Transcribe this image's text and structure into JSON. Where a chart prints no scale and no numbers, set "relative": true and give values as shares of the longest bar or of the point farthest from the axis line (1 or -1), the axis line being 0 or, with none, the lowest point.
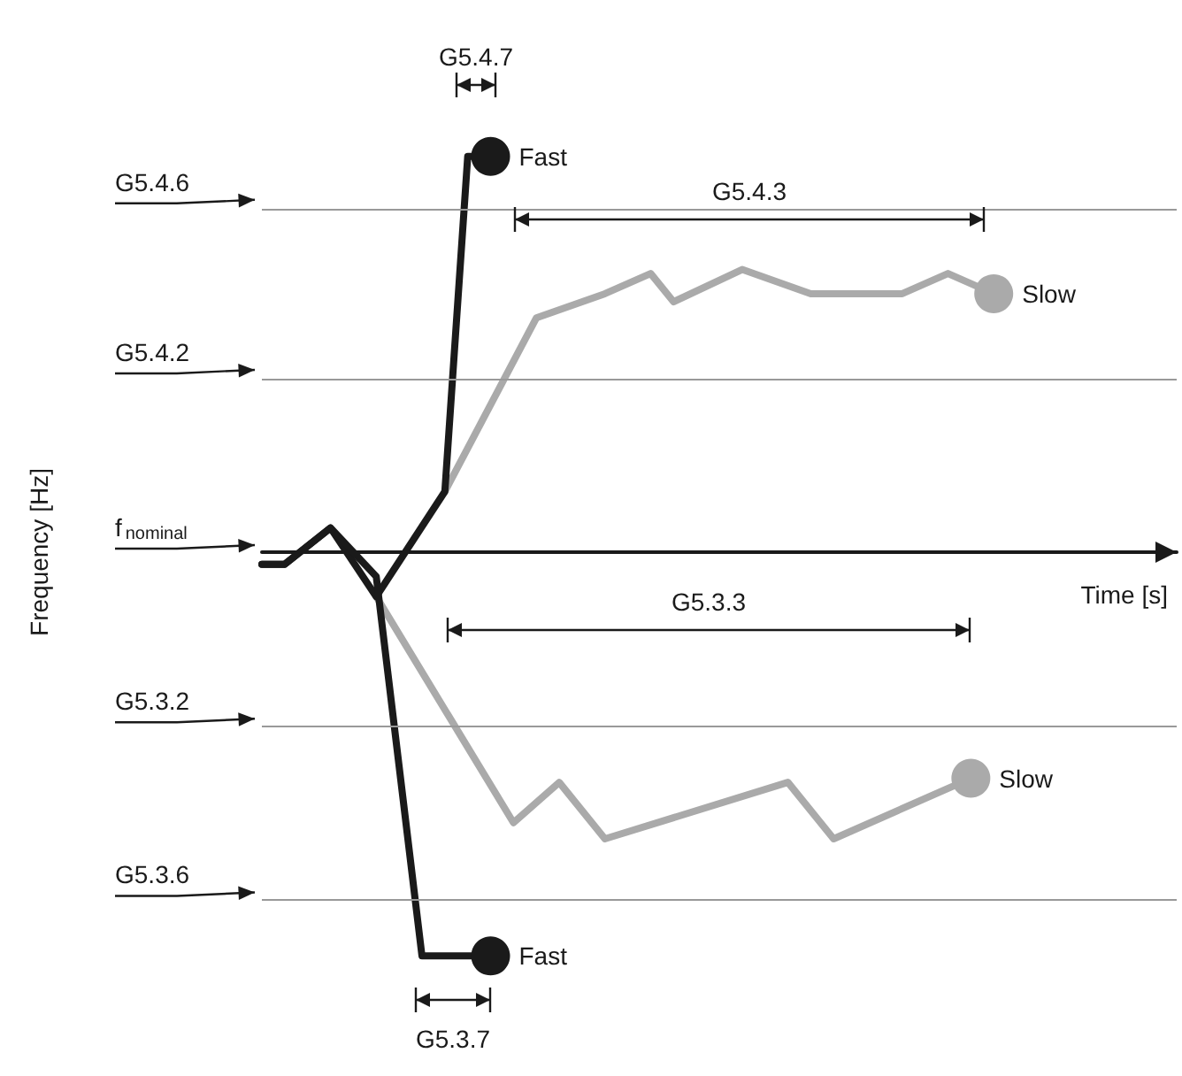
{
  "chart_data": {
    "type": "line",
    "relative": true,
    "xlabel": "Time [s]",
    "grid": false,
    "line_style": "solid",
    "categories": [
      null,
      null,
      null,
      null,
      null,
      null,
      null,
      null,
      null,
      null,
      null,
      null,
      null,
      null,
      null,
      null,
      null,
      null,
      null,
      null,
      null,
      null,
      null,
      null,
      null,
      null,
      null,
      null,
      null,
      null,
      null,
      null,
      null,
      null,
      null,
      null,
      null,
      null,
      null,
      null,
      null
    ],
    "series": [
      {
        "name": "Fast",
        "color": "#1a1a1a",
        "values": [
          -0.03,
          -0.03,
          null,
          0.06,
          null,
          -0.11,
          null,
          null,
          0.15,
          0.98,
          0.98,
          null,
          null,
          null,
          null,
          null,
          null,
          null,
          null,
          null,
          null,
          null,
          null,
          null,
          null,
          null,
          null,
          null,
          null,
          null,
          null,
          null,
          null,
          null,
          null,
          null,
          null,
          null,
          null,
          null,
          null
        ]
      },
      {
        "name": "Slow",
        "color": "#aaaaaa",
        "values": [
          null,
          null,
          null,
          null,
          null,
          null,
          null,
          null,
          0.15,
          null,
          null,
          null,
          0.58,
          null,
          null,
          0.64,
          null,
          0.69,
          0.62,
          null,
          null,
          0.7,
          null,
          null,
          0.64,
          null,
          null,
          null,
          0.64,
          null,
          0.69,
          null,
          0.64,
          null,
          null,
          null,
          null,
          null,
          null,
          null,
          null
        ]
      },
      {
        "name": "Slow",
        "color": "#aaaaaa",
        "values": [
          null,
          null,
          null,
          null,
          null,
          -0.11,
          null,
          null,
          null,
          null,
          null,
          -0.67,
          null,
          -0.57,
          null,
          -0.71,
          null,
          null,
          null,
          null,
          null,
          null,
          null,
          -0.57,
          null,
          -0.71,
          null,
          null,
          null,
          null,
          null,
          -0.56,
          null,
          null,
          null,
          null,
          null,
          null,
          null,
          null,
          null
        ]
      },
      {
        "name": "Fast",
        "color": "#1a1a1a",
        "values": [
          -0.03,
          -0.03,
          null,
          0.06,
          null,
          -0.06,
          null,
          -1,
          null,
          null,
          -1,
          null,
          null,
          null,
          null,
          null,
          null,
          null,
          null,
          null,
          null,
          null,
          null,
          null,
          null,
          null,
          null,
          null,
          null,
          null,
          null,
          null,
          null,
          null,
          null,
          null,
          null,
          null,
          null,
          null,
          null
        ]
      }
    ],
    "ref_lines": [
      {
        "axis": "y",
        "value": 0.855,
        "label": "G5.4.6",
        "color": "#999999"
      },
      {
        "axis": "y",
        "value": 0.434,
        "label": "G5.4.2",
        "color": "#999999"
      },
      {
        "axis": "y",
        "value": 0,
        "label": "f$_{nominal}$",
        "color": "#1a1a1a"
      },
      {
        "axis": "y",
        "value": -0.43,
        "label": "G5.3.2",
        "color": "#999999"
      },
      {
        "axis": "y",
        "value": -0.86,
        "label": "G5.3.6",
        "color": "#999999"
      }
    ],
    "annotations": [
      "G5.4.7",
      "G5.4.3",
      "G5.3.3",
      "G5.3.7",
      "Frequency [Hz]"
    ]
  }
}
